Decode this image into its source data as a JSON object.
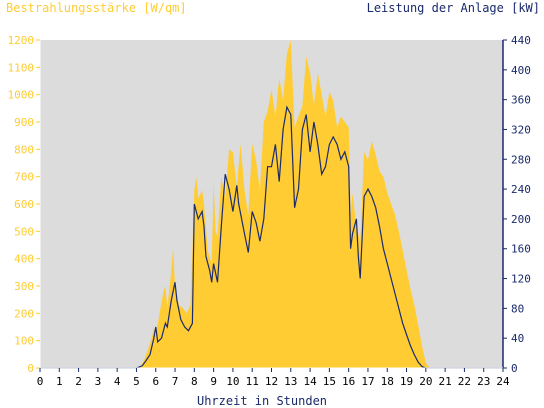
{
  "chart_data": {
    "type": "area",
    "y_left_label": "Bestrahlungsstärke [W/qm]",
    "y_right_label": "Leistung der Anlage [kW]",
    "xlabel": "Uhrzeit in Stunden",
    "x_ticks": [
      0,
      1,
      2,
      3,
      4,
      5,
      6,
      7,
      8,
      9,
      10,
      11,
      12,
      13,
      14,
      15,
      16,
      17,
      18,
      19,
      20,
      21,
      22,
      23,
      24
    ],
    "y_left_ticks": [
      0,
      100,
      200,
      300,
      400,
      500,
      600,
      700,
      800,
      900,
      1000,
      1100,
      1200
    ],
    "y_right_ticks": [
      0,
      40,
      80,
      120,
      160,
      200,
      240,
      280,
      320,
      360,
      400,
      440
    ],
    "xlim": [
      0,
      24
    ],
    "y_left_lim": [
      0,
      1200
    ],
    "y_right_lim": [
      0,
      440
    ],
    "colors": {
      "irradiance": "#ffcc33",
      "power": "#1a2a6c",
      "plot_background": "#dcdcdc",
      "left_axis_text": "#ffcc33",
      "right_axis_text": "#1a2a6c",
      "frame": "#ffffff"
    },
    "series": [
      {
        "key": "irradiance",
        "axis": "left",
        "style": "area",
        "points": [
          [
            0,
            0
          ],
          [
            5,
            0
          ],
          [
            5.2,
            5
          ],
          [
            5.4,
            30
          ],
          [
            5.6,
            70
          ],
          [
            5.8,
            110
          ],
          [
            5.9,
            150
          ],
          [
            6,
            120
          ],
          [
            6.2,
            200
          ],
          [
            6.4,
            280
          ],
          [
            6.5,
            300
          ],
          [
            6.6,
            220
          ],
          [
            6.8,
            350
          ],
          [
            6.9,
            440
          ],
          [
            7,
            300
          ],
          [
            7.2,
            230
          ],
          [
            7.4,
            220
          ],
          [
            7.6,
            200
          ],
          [
            7.8,
            230
          ],
          [
            8,
            650
          ],
          [
            8.1,
            700
          ],
          [
            8.2,
            620
          ],
          [
            8.4,
            650
          ],
          [
            8.5,
            600
          ],
          [
            8.7,
            430
          ],
          [
            8.9,
            380
          ],
          [
            9,
            680
          ],
          [
            9.1,
            500
          ],
          [
            9.2,
            480
          ],
          [
            9.4,
            700
          ],
          [
            9.6,
            620
          ],
          [
            9.8,
            800
          ],
          [
            10,
            790
          ],
          [
            10.2,
            660
          ],
          [
            10.4,
            820
          ],
          [
            10.6,
            650
          ],
          [
            10.8,
            560
          ],
          [
            11,
            820
          ],
          [
            11.2,
            760
          ],
          [
            11.4,
            650
          ],
          [
            11.6,
            900
          ],
          [
            11.8,
            940
          ],
          [
            12,
            1020
          ],
          [
            12.2,
            920
          ],
          [
            12.4,
            1060
          ],
          [
            12.6,
            980
          ],
          [
            12.8,
            1150
          ],
          [
            13,
            1200
          ],
          [
            13.2,
            880
          ],
          [
            13.4,
            920
          ],
          [
            13.6,
            960
          ],
          [
            13.8,
            1140
          ],
          [
            14,
            1080
          ],
          [
            14.2,
            960
          ],
          [
            14.4,
            1080
          ],
          [
            14.6,
            1000
          ],
          [
            14.8,
            920
          ],
          [
            15,
            1010
          ],
          [
            15.2,
            980
          ],
          [
            15.4,
            880
          ],
          [
            15.6,
            920
          ],
          [
            15.8,
            900
          ],
          [
            16,
            880
          ],
          [
            16.1,
            560
          ],
          [
            16.2,
            640
          ],
          [
            16.4,
            520
          ],
          [
            16.6,
            460
          ],
          [
            16.8,
            790
          ],
          [
            17,
            760
          ],
          [
            17.2,
            830
          ],
          [
            17.4,
            780
          ],
          [
            17.6,
            720
          ],
          [
            17.8,
            700
          ],
          [
            18,
            640
          ],
          [
            18.2,
            600
          ],
          [
            18.4,
            560
          ],
          [
            18.6,
            500
          ],
          [
            18.8,
            430
          ],
          [
            19,
            360
          ],
          [
            19.2,
            290
          ],
          [
            19.4,
            230
          ],
          [
            19.6,
            160
          ],
          [
            19.8,
            80
          ],
          [
            20,
            20
          ],
          [
            20.2,
            0
          ],
          [
            24,
            0
          ]
        ]
      },
      {
        "key": "power",
        "axis": "right",
        "style": "line",
        "points": [
          [
            0,
            0
          ],
          [
            5,
            0
          ],
          [
            5.3,
            3
          ],
          [
            5.5,
            10
          ],
          [
            5.7,
            18
          ],
          [
            5.9,
            40
          ],
          [
            6,
            55
          ],
          [
            6.1,
            35
          ],
          [
            6.3,
            40
          ],
          [
            6.5,
            60
          ],
          [
            6.6,
            55
          ],
          [
            6.8,
            90
          ],
          [
            7,
            115
          ],
          [
            7.1,
            90
          ],
          [
            7.3,
            65
          ],
          [
            7.5,
            55
          ],
          [
            7.7,
            50
          ],
          [
            7.9,
            60
          ],
          [
            8,
            220
          ],
          [
            8.2,
            200
          ],
          [
            8.4,
            210
          ],
          [
            8.5,
            190
          ],
          [
            8.6,
            150
          ],
          [
            8.8,
            130
          ],
          [
            8.9,
            115
          ],
          [
            9,
            140
          ],
          [
            9.2,
            115
          ],
          [
            9.4,
            190
          ],
          [
            9.6,
            260
          ],
          [
            9.8,
            240
          ],
          [
            10,
            210
          ],
          [
            10.2,
            245
          ],
          [
            10.3,
            220
          ],
          [
            10.6,
            180
          ],
          [
            10.8,
            155
          ],
          [
            11,
            210
          ],
          [
            11.2,
            195
          ],
          [
            11.4,
            170
          ],
          [
            11.6,
            200
          ],
          [
            11.8,
            270
          ],
          [
            12,
            270
          ],
          [
            12.2,
            300
          ],
          [
            12.4,
            250
          ],
          [
            12.6,
            320
          ],
          [
            12.8,
            350
          ],
          [
            13,
            340
          ],
          [
            13.2,
            215
          ],
          [
            13.4,
            240
          ],
          [
            13.6,
            320
          ],
          [
            13.8,
            340
          ],
          [
            14,
            290
          ],
          [
            14.2,
            330
          ],
          [
            14.4,
            300
          ],
          [
            14.6,
            260
          ],
          [
            14.8,
            270
          ],
          [
            15,
            300
          ],
          [
            15.2,
            310
          ],
          [
            15.4,
            300
          ],
          [
            15.6,
            280
          ],
          [
            15.8,
            290
          ],
          [
            16,
            270
          ],
          [
            16.1,
            160
          ],
          [
            16.2,
            180
          ],
          [
            16.4,
            200
          ],
          [
            16.5,
            150
          ],
          [
            16.6,
            120
          ],
          [
            16.8,
            230
          ],
          [
            17,
            240
          ],
          [
            17.2,
            230
          ],
          [
            17.4,
            215
          ],
          [
            17.6,
            190
          ],
          [
            17.8,
            160
          ],
          [
            18,
            140
          ],
          [
            18.2,
            120
          ],
          [
            18.4,
            100
          ],
          [
            18.6,
            80
          ],
          [
            18.8,
            60
          ],
          [
            19,
            45
          ],
          [
            19.2,
            30
          ],
          [
            19.4,
            18
          ],
          [
            19.6,
            8
          ],
          [
            19.8,
            2
          ],
          [
            20,
            0
          ],
          [
            24,
            0
          ]
        ]
      }
    ]
  }
}
